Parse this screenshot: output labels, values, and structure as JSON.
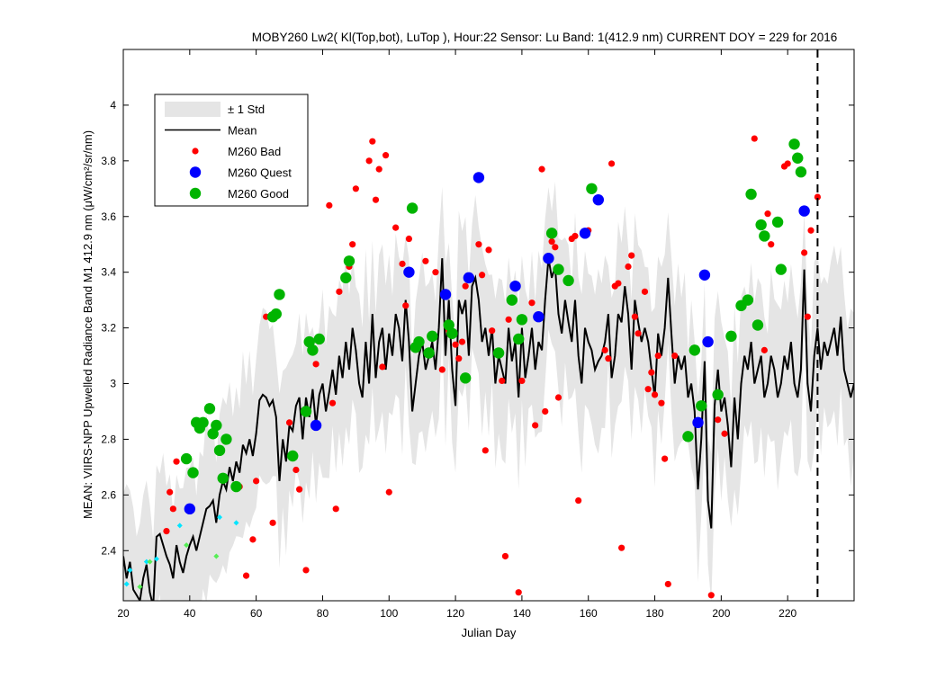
{
  "chart_data": {
    "type": "scatter",
    "title": "MOBY260   Lw2( Kl(Top,bot), LuTop ),   Hour:22 Sensor: Lu Band: 1(412.9 nm)   CURRENT DOY = 229 for 2016",
    "xlabel": "Julian Day",
    "ylabel": "MEAN: VIIRS-NPP Upwelled Radiance Band M1 412.9 nm (μW/cm²/sr/nm)",
    "xlim": [
      20,
      240
    ],
    "ylim": [
      2.22,
      4.2
    ],
    "xticks": [
      20,
      40,
      60,
      80,
      100,
      120,
      140,
      160,
      180,
      200,
      220
    ],
    "yticks": [
      2.4,
      2.6,
      2.8,
      3.0,
      3.2,
      3.4,
      3.6,
      3.8,
      4.0
    ],
    "ytick_labels": [
      "2.4",
      "2.6",
      "2.8",
      "3",
      "3.2",
      "3.4",
      "3.6",
      "3.8",
      "4"
    ],
    "grid": false,
    "legend_position": "top-left",
    "current_doy": 229,
    "colors": {
      "std_band": "#e5e5e5",
      "mean": "#000000",
      "bad": "#ff0000",
      "quest": "#0000ff",
      "good": "#00b400",
      "cyan": "#00e5ff",
      "lightgreen": "#55ee55"
    },
    "legend": [
      {
        "label": "± 1 Std",
        "kind": "band"
      },
      {
        "label": "Mean",
        "kind": "line"
      },
      {
        "label": "M260 Bad",
        "kind": "bad"
      },
      {
        "label": "M260 Quest",
        "kind": "quest"
      },
      {
        "label": "M260 Good",
        "kind": "good"
      }
    ],
    "series": [
      {
        "name": "Mean",
        "x": [
          20,
          21,
          22,
          23,
          24,
          25,
          26,
          27,
          28,
          29,
          30,
          31,
          32,
          33,
          34,
          35,
          36,
          37,
          38,
          39,
          40,
          41,
          42,
          43,
          44,
          45,
          46,
          47,
          48,
          49,
          50,
          51,
          52,
          53,
          54,
          55,
          56,
          57,
          58,
          59,
          60,
          61,
          62,
          63,
          64,
          65,
          66,
          67,
          68,
          69,
          70,
          71,
          72,
          73,
          74,
          75,
          76,
          77,
          78,
          79,
          80,
          81,
          82,
          83,
          84,
          85,
          86,
          87,
          88,
          89,
          90,
          91,
          92,
          93,
          94,
          95,
          96,
          97,
          98,
          99,
          100,
          101,
          102,
          103,
          104,
          105,
          106,
          107,
          108,
          109,
          110,
          111,
          112,
          113,
          114,
          115,
          116,
          117,
          118,
          119,
          120,
          121,
          122,
          123,
          124,
          125,
          126,
          127,
          128,
          129,
          130,
          131,
          132,
          133,
          134,
          135,
          136,
          137,
          138,
          139,
          140,
          141,
          142,
          143,
          144,
          145,
          146,
          147,
          148,
          149,
          150,
          151,
          152,
          153,
          154,
          155,
          156,
          157,
          158,
          159,
          160,
          161,
          162,
          163,
          164,
          165,
          166,
          167,
          168,
          169,
          170,
          171,
          172,
          173,
          174,
          175,
          176,
          177,
          178,
          179,
          180,
          181,
          182,
          183,
          184,
          185,
          186,
          187,
          188,
          189,
          190,
          191,
          192,
          193,
          194,
          195,
          196,
          197,
          198,
          199,
          200,
          201,
          202,
          203,
          204,
          205,
          206,
          207,
          208,
          209,
          210,
          211,
          212,
          213,
          214,
          215,
          216,
          217,
          218,
          219,
          220,
          221,
          222,
          223,
          224,
          225,
          226,
          227,
          228,
          229,
          230,
          231,
          232,
          233,
          234,
          235,
          236,
          237,
          238,
          239,
          240
        ],
        "y": [
          2.38,
          2.3,
          2.36,
          2.26,
          2.24,
          2.22,
          2.3,
          2.35,
          2.25,
          2.2,
          2.45,
          2.46,
          2.42,
          2.38,
          2.35,
          2.3,
          2.42,
          2.36,
          2.32,
          2.38,
          2.42,
          2.45,
          2.4,
          2.45,
          2.5,
          2.55,
          2.56,
          2.58,
          2.5,
          2.6,
          2.65,
          2.62,
          2.7,
          2.65,
          2.72,
          2.68,
          2.78,
          2.75,
          2.8,
          2.74,
          2.82,
          2.94,
          2.96,
          2.95,
          2.92,
          2.94,
          2.88,
          2.65,
          2.8,
          2.72,
          2.85,
          2.83,
          2.92,
          2.95,
          2.8,
          2.95,
          2.88,
          2.98,
          2.85,
          2.96,
          3.0,
          2.9,
          2.97,
          3.05,
          2.96,
          3.1,
          3.02,
          3.15,
          3.05,
          3.2,
          3.12,
          3.0,
          2.95,
          3.15,
          3.0,
          3.25,
          3.02,
          3.15,
          3.2,
          3.05,
          3.18,
          3.1,
          3.25,
          3.2,
          3.08,
          3.3,
          3.15,
          2.9,
          3.0,
          3.1,
          3.15,
          3.05,
          3.1,
          3.15,
          3.05,
          3.2,
          3.45,
          3.1,
          3.3,
          3.05,
          2.92,
          3.3,
          3.25,
          3.3,
          3.1,
          3.35,
          3.38,
          3.3,
          3.15,
          3.2,
          3.1,
          3.2,
          3.0,
          3.1,
          3.05,
          3.0,
          3.2,
          3.08,
          3.15,
          2.95,
          3.2,
          3.02,
          3.1,
          3.2,
          3.05,
          3.15,
          3.12,
          3.3,
          3.45,
          3.38,
          3.42,
          3.25,
          3.18,
          3.3,
          3.22,
          3.15,
          3.3,
          3.1,
          3.0,
          3.2,
          3.15,
          3.12,
          3.05,
          3.08,
          3.1,
          3.15,
          3.25,
          3.02,
          3.1,
          3.25,
          3.22,
          3.35,
          3.25,
          3.05,
          3.3,
          3.22,
          3.15,
          3.2,
          3.15,
          3.05,
          2.95,
          3.18,
          3.1,
          3.2,
          3.38,
          3.18,
          3.0,
          3.1,
          3.05,
          3.1,
          2.95,
          3.0,
          2.9,
          2.62,
          2.8,
          3.08,
          2.58,
          2.48,
          2.92,
          3.05,
          2.9,
          2.95,
          2.85,
          2.7,
          2.95,
          2.8,
          3.0,
          3.1,
          3.05,
          3.15,
          3.0,
          3.05,
          3.1,
          2.95,
          3.0,
          3.1,
          3.05,
          2.95,
          3.0,
          3.1,
          3.05,
          3.15,
          3.0,
          2.95,
          3.05,
          3.41,
          3.0,
          2.9,
          3.1,
          3.2,
          3.05,
          3.15,
          3.1,
          3.15,
          3.2,
          3.1,
          3.24,
          3.05,
          3.0,
          2.95,
          3.0
        ]
      },
      {
        "name": "M260 Bad",
        "points": [
          [
            33,
            2.47
          ],
          [
            34,
            2.61
          ],
          [
            35,
            2.55
          ],
          [
            36,
            2.72
          ],
          [
            55,
            2.63
          ],
          [
            57,
            2.31
          ],
          [
            59,
            2.44
          ],
          [
            60,
            2.65
          ],
          [
            63,
            3.24
          ],
          [
            65,
            2.5
          ],
          [
            70,
            2.86
          ],
          [
            72,
            2.69
          ],
          [
            73,
            2.62
          ],
          [
            75,
            2.33
          ],
          [
            78,
            3.07
          ],
          [
            82,
            3.64
          ],
          [
            83,
            2.93
          ],
          [
            84,
            2.55
          ],
          [
            85,
            3.33
          ],
          [
            88,
            3.42
          ],
          [
            89,
            3.5
          ],
          [
            90,
            3.7
          ],
          [
            94,
            3.8
          ],
          [
            95,
            3.87
          ],
          [
            96,
            3.66
          ],
          [
            97,
            3.77
          ],
          [
            98,
            3.06
          ],
          [
            99,
            3.82
          ],
          [
            100,
            2.61
          ],
          [
            102,
            3.56
          ],
          [
            104,
            3.43
          ],
          [
            105,
            3.28
          ],
          [
            106,
            3.52
          ],
          [
            111,
            3.44
          ],
          [
            114,
            3.4
          ],
          [
            116,
            3.05
          ],
          [
            117,
            3.32
          ],
          [
            118,
            3.19
          ],
          [
            120,
            3.14
          ],
          [
            121,
            3.09
          ],
          [
            122,
            3.15
          ],
          [
            123,
            3.35
          ],
          [
            127,
            3.5
          ],
          [
            128,
            3.39
          ],
          [
            129,
            2.76
          ],
          [
            130,
            3.48
          ],
          [
            131,
            3.19
          ],
          [
            134,
            3.01
          ],
          [
            135,
            2.38
          ],
          [
            136,
            3.23
          ],
          [
            139,
            2.25
          ],
          [
            140,
            3.01
          ],
          [
            143,
            3.29
          ],
          [
            144,
            2.85
          ],
          [
            146,
            3.77
          ],
          [
            147,
            2.9
          ],
          [
            149,
            3.51
          ],
          [
            150,
            3.49
          ],
          [
            151,
            2.95
          ],
          [
            155,
            3.52
          ],
          [
            156,
            3.53
          ],
          [
            157,
            2.58
          ],
          [
            160,
            3.55
          ],
          [
            165,
            3.12
          ],
          [
            166,
            3.09
          ],
          [
            167,
            3.79
          ],
          [
            168,
            3.35
          ],
          [
            169,
            3.36
          ],
          [
            170,
            2.41
          ],
          [
            172,
            3.42
          ],
          [
            173,
            3.46
          ],
          [
            174,
            3.24
          ],
          [
            175,
            3.18
          ],
          [
            177,
            3.33
          ],
          [
            178,
            2.98
          ],
          [
            179,
            3.04
          ],
          [
            180,
            2.96
          ],
          [
            181,
            3.1
          ],
          [
            182,
            2.93
          ],
          [
            183,
            2.73
          ],
          [
            184,
            2.28
          ],
          [
            186,
            3.1
          ],
          [
            197,
            2.24
          ],
          [
            199,
            2.87
          ],
          [
            201,
            2.82
          ],
          [
            207,
            3.29
          ],
          [
            210,
            3.88
          ],
          [
            213,
            3.12
          ],
          [
            214,
            3.61
          ],
          [
            215,
            3.5
          ],
          [
            219,
            3.78
          ],
          [
            220,
            3.79
          ],
          [
            225,
            3.47
          ],
          [
            226,
            3.24
          ],
          [
            227,
            3.55
          ],
          [
            229,
            3.67
          ]
        ]
      },
      {
        "name": "M260 Quest",
        "points": [
          [
            40,
            2.55
          ],
          [
            78,
            2.85
          ],
          [
            106,
            3.4
          ],
          [
            117,
            3.32
          ],
          [
            124,
            3.38
          ],
          [
            127,
            3.74
          ],
          [
            138,
            3.35
          ],
          [
            145,
            3.24
          ],
          [
            148,
            3.45
          ],
          [
            159,
            3.54
          ],
          [
            163,
            3.66
          ],
          [
            193,
            2.86
          ],
          [
            195,
            3.39
          ],
          [
            196,
            3.15
          ],
          [
            225,
            3.62
          ]
        ]
      },
      {
        "name": "M260 Good",
        "points": [
          [
            39,
            2.73
          ],
          [
            41,
            2.68
          ],
          [
            42,
            2.86
          ],
          [
            43,
            2.84
          ],
          [
            44,
            2.86
          ],
          [
            46,
            2.91
          ],
          [
            47,
            2.82
          ],
          [
            48,
            2.85
          ],
          [
            49,
            2.76
          ],
          [
            50,
            2.66
          ],
          [
            51,
            2.8
          ],
          [
            54,
            2.63
          ],
          [
            65,
            3.24
          ],
          [
            66,
            3.25
          ],
          [
            67,
            3.32
          ],
          [
            71,
            2.74
          ],
          [
            75,
            2.9
          ],
          [
            76,
            3.15
          ],
          [
            77,
            3.12
          ],
          [
            79,
            3.16
          ],
          [
            87,
            3.38
          ],
          [
            88,
            3.44
          ],
          [
            107,
            3.63
          ],
          [
            108,
            3.13
          ],
          [
            109,
            3.15
          ],
          [
            112,
            3.11
          ],
          [
            113,
            3.17
          ],
          [
            118,
            3.21
          ],
          [
            119,
            3.18
          ],
          [
            123,
            3.02
          ],
          [
            133,
            3.11
          ],
          [
            137,
            3.3
          ],
          [
            139,
            3.16
          ],
          [
            140,
            3.23
          ],
          [
            149,
            3.54
          ],
          [
            151,
            3.41
          ],
          [
            154,
            3.37
          ],
          [
            161,
            3.7
          ],
          [
            190,
            2.81
          ],
          [
            192,
            3.12
          ],
          [
            194,
            2.92
          ],
          [
            199,
            2.96
          ],
          [
            203,
            3.17
          ],
          [
            206,
            3.28
          ],
          [
            208,
            3.3
          ],
          [
            209,
            3.68
          ],
          [
            211,
            3.21
          ],
          [
            212,
            3.57
          ],
          [
            213,
            3.53
          ],
          [
            217,
            3.58
          ],
          [
            218,
            3.41
          ],
          [
            222,
            3.86
          ],
          [
            223,
            3.81
          ],
          [
            224,
            3.76
          ]
        ]
      },
      {
        "name": "",
        "points": [
          [
            21,
            2.28
          ],
          [
            22,
            2.33
          ],
          [
            27,
            2.36
          ],
          [
            30,
            2.37
          ],
          [
            37,
            2.49
          ],
          [
            49,
            2.52
          ],
          [
            54,
            2.5
          ]
        ]
      },
      {
        "name": "",
        "points": [
          [
            25,
            2.27
          ],
          [
            28,
            2.36
          ],
          [
            39,
            2.42
          ],
          [
            48,
            2.38
          ]
        ]
      }
    ]
  }
}
